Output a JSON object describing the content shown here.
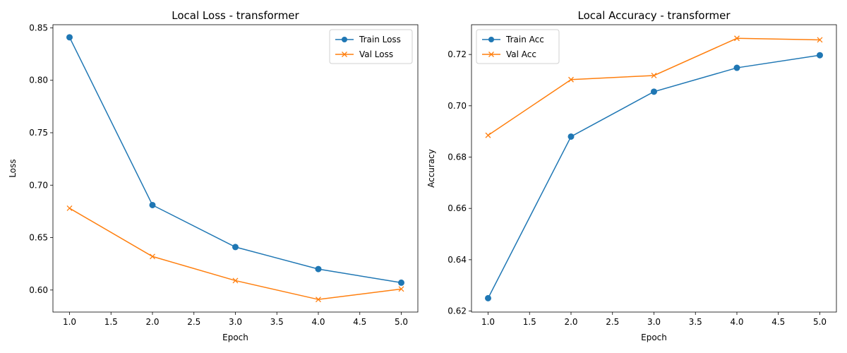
{
  "chart_data": [
    {
      "type": "line",
      "title": "Local Loss - transformer",
      "xlabel": "Epoch",
      "ylabel": "Loss",
      "x": [
        1.0,
        2.0,
        3.0,
        4.0,
        5.0
      ],
      "xlim": [
        0.8,
        5.2
      ],
      "ylim": [
        0.579,
        0.853
      ],
      "xticks": [
        1.0,
        1.5,
        2.0,
        2.5,
        3.0,
        3.5,
        4.0,
        4.5,
        5.0
      ],
      "yticks": [
        0.6,
        0.65,
        0.7,
        0.75,
        0.8,
        0.85
      ],
      "grid": false,
      "legend_position": "top-right",
      "series": [
        {
          "name": "Train Loss",
          "marker": "circle",
          "color": "#1f77b4",
          "values": [
            0.841,
            0.681,
            0.641,
            0.62,
            0.607
          ]
        },
        {
          "name": "Val Loss",
          "marker": "x",
          "color": "#ff7f0e",
          "values": [
            0.678,
            0.632,
            0.609,
            0.591,
            0.601
          ]
        }
      ]
    },
    {
      "type": "line",
      "title": "Local Accuracy - transformer",
      "xlabel": "Epoch",
      "ylabel": "Accuracy",
      "x": [
        1.0,
        2.0,
        3.0,
        4.0,
        5.0
      ],
      "xlim": [
        0.8,
        5.2
      ],
      "ylim": [
        0.6196,
        0.7316
      ],
      "xticks": [
        1.0,
        1.5,
        2.0,
        2.5,
        3.0,
        3.5,
        4.0,
        4.5,
        5.0
      ],
      "yticks": [
        0.62,
        0.64,
        0.66,
        0.68,
        0.7,
        0.72
      ],
      "grid": false,
      "legend_position": "top-left",
      "series": [
        {
          "name": "Train Acc",
          "marker": "circle",
          "color": "#1f77b4",
          "values": [
            0.625,
            0.688,
            0.7055,
            0.7148,
            0.7197
          ]
        },
        {
          "name": "Val Acc",
          "marker": "x",
          "color": "#ff7f0e",
          "values": [
            0.6885,
            0.7102,
            0.7118,
            0.7263,
            0.7257
          ]
        }
      ]
    }
  ]
}
